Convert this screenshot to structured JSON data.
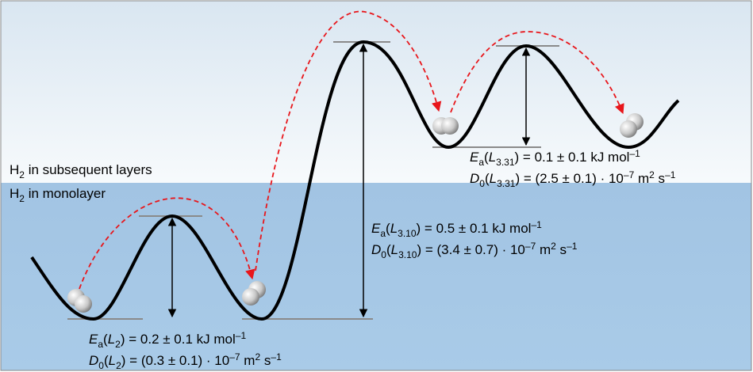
{
  "labels": {
    "subsequent": [
      "H",
      "2",
      " in subsequent layers"
    ],
    "monolayer": [
      "H",
      "2",
      " in monolayer"
    ]
  },
  "barriers": [
    {
      "ea": [
        "E",
        "a",
        "(",
        "L",
        "2",
        ") = 0.2 ± 0.1 kJ mol",
        "–1"
      ],
      "d0": [
        "D",
        "0",
        "(",
        "L",
        "2",
        ") = (0.3 ± 0.1) · 10",
        "–7",
        " m",
        "2",
        " s",
        "–1"
      ]
    },
    {
      "ea": [
        "E",
        "a",
        "(",
        "L",
        "3.10",
        ") = 0.5 ± 0.1 kJ mol",
        "–1"
      ],
      "d0": [
        "D",
        "0",
        "(",
        "L",
        "3.10",
        ") = (3.4 ± 0.7) · 10",
        "–7",
        " m",
        "2",
        " s",
        "–1"
      ]
    },
    {
      "ea": [
        "E",
        "a",
        "(",
        "L",
        "3.31",
        ") = 0.1 ± 0.1 kJ mol",
        "–1"
      ],
      "d0": [
        "D",
        "0",
        "(",
        "L",
        "3.31",
        ") = (2.5 ± 0.1) · 10",
        "–7",
        " m",
        "2",
        " s",
        "–1"
      ]
    }
  ]
}
